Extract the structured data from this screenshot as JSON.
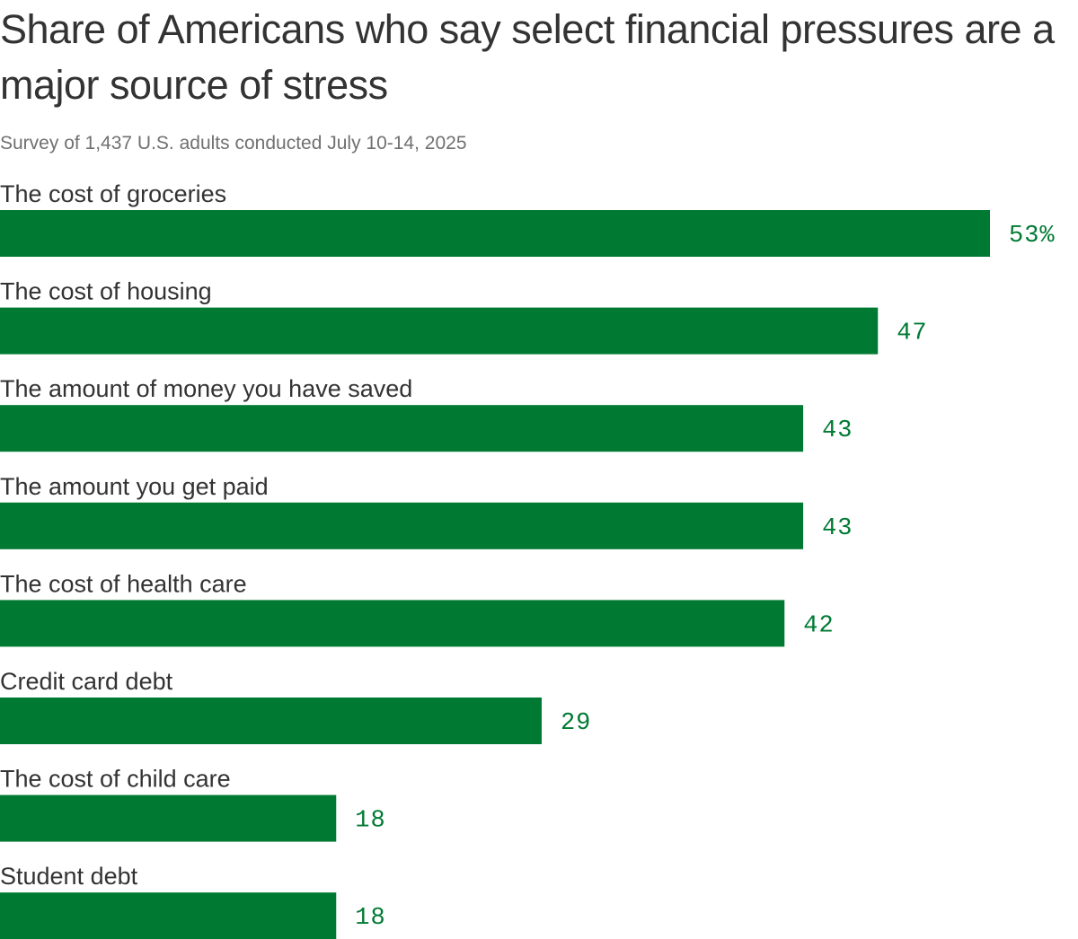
{
  "header": {
    "title": "Share of Americans who say select financial pressures are a major source of stress",
    "subtitle": "Survey of 1,437 U.S. adults conducted July 10-14, 2025"
  },
  "colors": {
    "bar": "#007a33",
    "value_label": "#007a33"
  },
  "chart_data": {
    "type": "bar",
    "orientation": "horizontal",
    "title": "Share of Americans who say select financial pressures are a major source of stress",
    "subtitle": "Survey of 1,437 U.S. adults conducted July 10-14, 2025",
    "categories": [
      "The cost of groceries",
      "The cost of housing",
      "The amount of money you have saved",
      "The amount you get paid",
      "The cost of health care",
      "Credit card debt",
      "The cost of child care",
      "Student debt"
    ],
    "values": [
      53,
      47,
      43,
      43,
      42,
      29,
      18,
      18
    ],
    "value_labels": [
      "53%",
      "47",
      "43",
      "43",
      "42",
      "29",
      "18",
      "18"
    ],
    "unit": "%",
    "xlim": [
      0,
      53
    ],
    "xlabel": "",
    "ylabel": "",
    "grid": false,
    "legend": "none"
  }
}
